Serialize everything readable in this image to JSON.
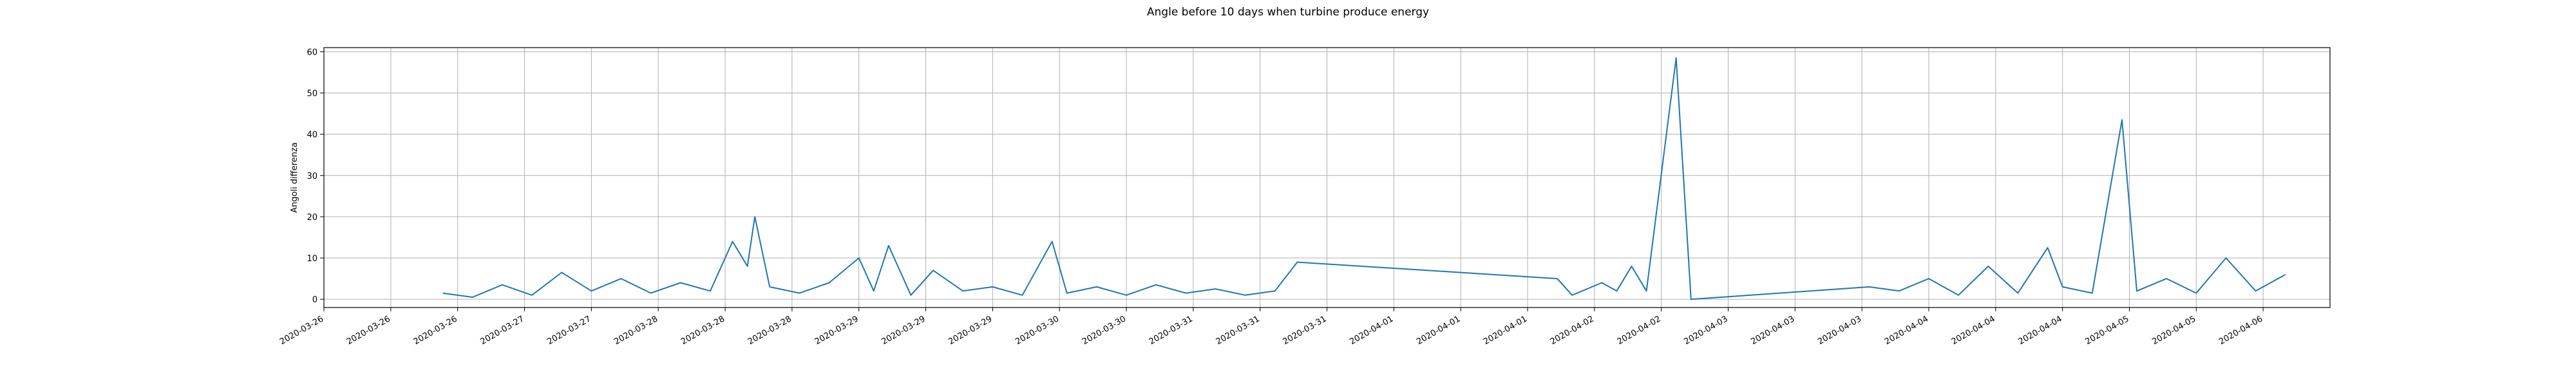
{
  "chart_data": {
    "type": "line",
    "title": "Angle before 10 days when turbine produce energy",
    "xlabel": "",
    "ylabel": "Angoli differenza",
    "xlim": [
      "2020-03-26T00:00",
      "2020-04-06T06:00"
    ],
    "ylim": [
      -2,
      61
    ],
    "grid": true,
    "y_ticks": [
      0,
      10,
      20,
      30,
      40,
      50,
      60
    ],
    "x_tick_labels": [
      "2020-03-26",
      "2020-03-26",
      "2020-03-26",
      "2020-03-27",
      "2020-03-27",
      "2020-03-28",
      "2020-03-28",
      "2020-03-28",
      "2020-03-29",
      "2020-03-29",
      "2020-03-29",
      "2020-03-30",
      "2020-03-30",
      "2020-03-31",
      "2020-03-31",
      "2020-03-31",
      "2020-04-01",
      "2020-04-01",
      "2020-04-01",
      "2020-04-02",
      "2020-04-02",
      "2020-04-03",
      "2020-04-03",
      "2020-04-03",
      "2020-04-04",
      "2020-04-04",
      "2020-04-04",
      "2020-04-05",
      "2020-04-05",
      "2020-04-06"
    ],
    "series": [
      {
        "name": "",
        "color": "#1f77b4",
        "points": [
          [
            "2020-03-26T16:00",
            1.5
          ],
          [
            "2020-03-26T20:00",
            0.5
          ],
          [
            "2020-03-27T00:00",
            3.5
          ],
          [
            "2020-03-27T04:00",
            1.0
          ],
          [
            "2020-03-27T08:00",
            6.5
          ],
          [
            "2020-03-27T12:00",
            2.0
          ],
          [
            "2020-03-27T16:00",
            5.0
          ],
          [
            "2020-03-27T20:00",
            1.5
          ],
          [
            "2020-03-28T00:00",
            4.0
          ],
          [
            "2020-03-28T04:00",
            2.0
          ],
          [
            "2020-03-28T07:00",
            14.0
          ],
          [
            "2020-03-28T09:00",
            8.0
          ],
          [
            "2020-03-28T10:00",
            20.0
          ],
          [
            "2020-03-28T12:00",
            3.0
          ],
          [
            "2020-03-28T16:00",
            1.5
          ],
          [
            "2020-03-28T20:00",
            4.0
          ],
          [
            "2020-03-29T00:00",
            10.0
          ],
          [
            "2020-03-29T02:00",
            2.0
          ],
          [
            "2020-03-29T04:00",
            13.0
          ],
          [
            "2020-03-29T07:00",
            1.0
          ],
          [
            "2020-03-29T10:00",
            7.0
          ],
          [
            "2020-03-29T14:00",
            2.0
          ],
          [
            "2020-03-29T18:00",
            3.0
          ],
          [
            "2020-03-29T22:00",
            1.0
          ],
          [
            "2020-03-30T02:00",
            14.0
          ],
          [
            "2020-03-30T04:00",
            1.5
          ],
          [
            "2020-03-30T08:00",
            3.0
          ],
          [
            "2020-03-30T12:00",
            1.0
          ],
          [
            "2020-03-30T16:00",
            3.5
          ],
          [
            "2020-03-30T20:00",
            1.5
          ],
          [
            "2020-03-31T00:00",
            2.5
          ],
          [
            "2020-03-31T04:00",
            1.0
          ],
          [
            "2020-03-31T08:00",
            2.0
          ],
          [
            "2020-03-31T11:00",
            9.0
          ],
          [
            "2020-04-01T22:00",
            5.0
          ],
          [
            "2020-04-02T00:00",
            1.0
          ],
          [
            "2020-04-02T04:00",
            4.0
          ],
          [
            "2020-04-02T06:00",
            2.0
          ],
          [
            "2020-04-02T08:00",
            8.0
          ],
          [
            "2020-04-02T10:00",
            2.0
          ],
          [
            "2020-04-02T14:00",
            58.5
          ],
          [
            "2020-04-02T16:00",
            0.0
          ],
          [
            "2020-04-03T16:00",
            3.0
          ],
          [
            "2020-04-03T20:00",
            2.0
          ],
          [
            "2020-04-04T00:00",
            5.0
          ],
          [
            "2020-04-04T04:00",
            1.0
          ],
          [
            "2020-04-04T08:00",
            8.0
          ],
          [
            "2020-04-04T12:00",
            1.5
          ],
          [
            "2020-04-04T16:00",
            12.5
          ],
          [
            "2020-04-04T18:00",
            3.0
          ],
          [
            "2020-04-04T22:00",
            1.5
          ],
          [
            "2020-04-05T02:00",
            43.5
          ],
          [
            "2020-04-05T04:00",
            2.0
          ],
          [
            "2020-04-05T08:00",
            5.0
          ],
          [
            "2020-04-05T12:00",
            1.5
          ],
          [
            "2020-04-05T16:00",
            10.0
          ],
          [
            "2020-04-05T20:00",
            2.0
          ],
          [
            "2020-04-06T00:00",
            6.0
          ]
        ]
      }
    ]
  }
}
